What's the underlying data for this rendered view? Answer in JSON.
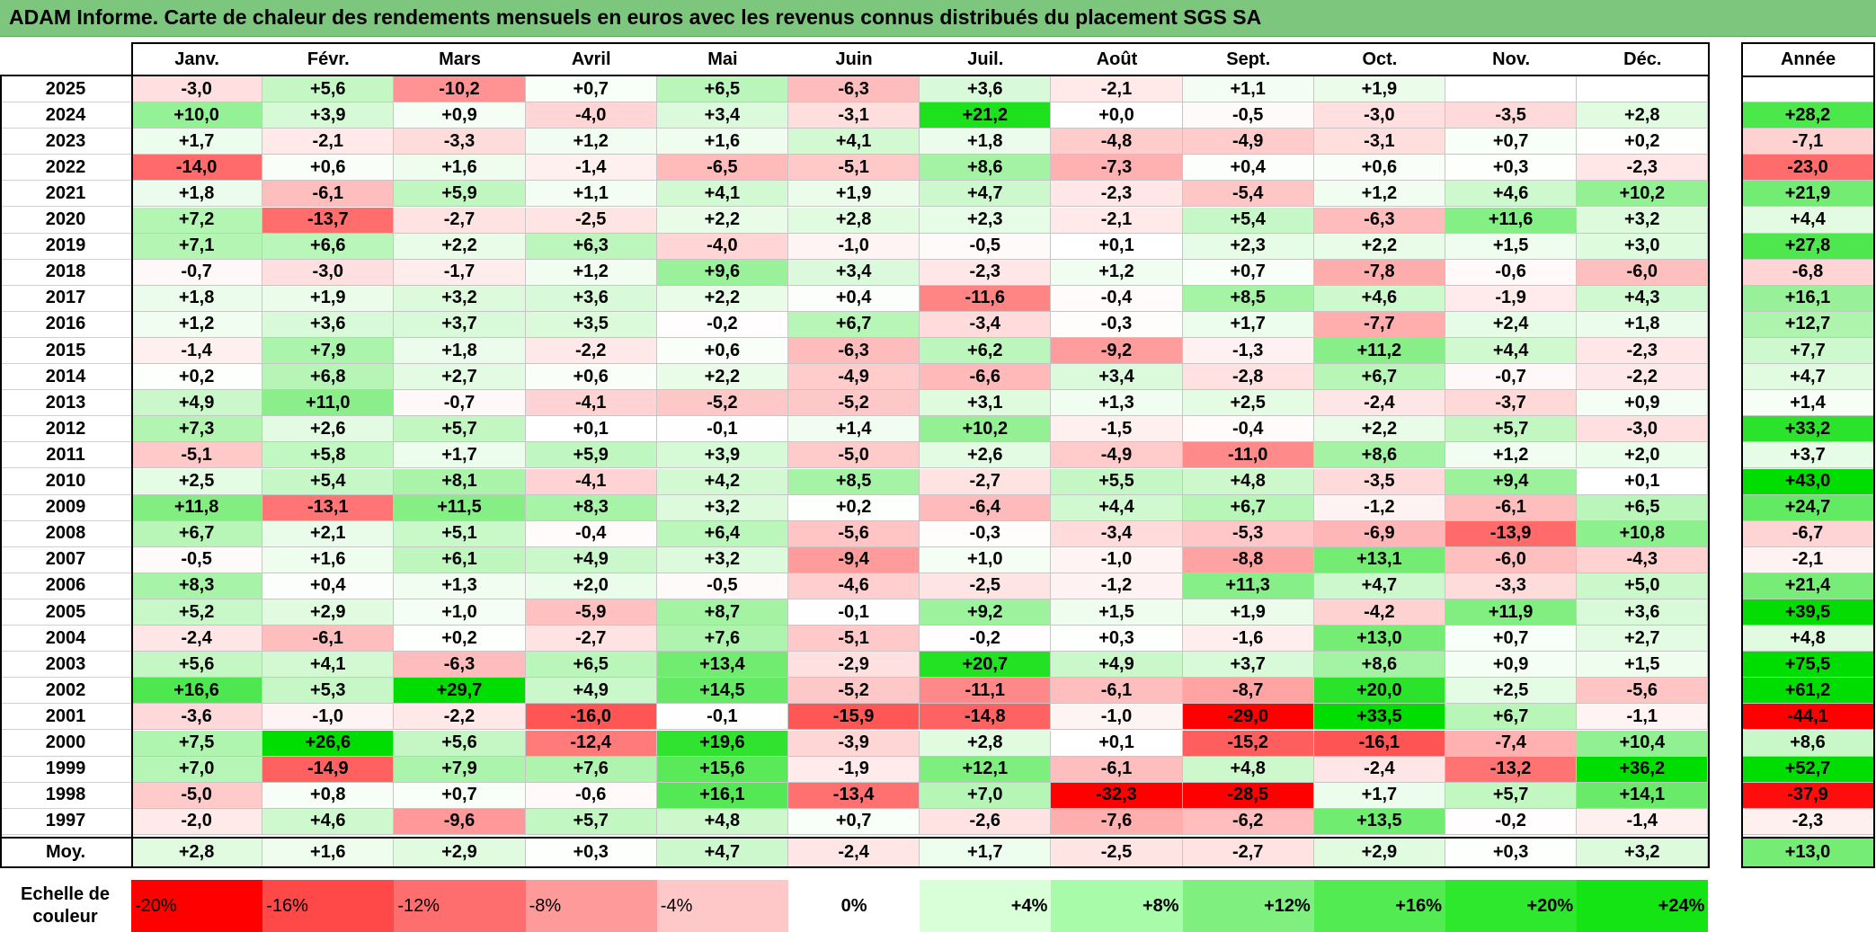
{
  "title": "ADAM Informe. Carte de chaleur des rendements mensuels en euros avec les revenus connus distribués du placement SGS SA",
  "chart_data": {
    "type": "heatmap",
    "columns": [
      "Janv.",
      "Févr.",
      "Mars",
      "Avril",
      "Mai",
      "Juin",
      "Juil.",
      "Août",
      "Sept.",
      "Oct.",
      "Nov.",
      "Déc."
    ],
    "year_header": "Année",
    "rows": [
      {
        "year": "2025",
        "values": [
          "-3,0",
          "+5,6",
          "-10,2",
          "+0,7",
          "+6,5",
          "-6,3",
          "+3,6",
          "-2,1",
          "+1,1",
          "+1,9",
          "",
          ""
        ],
        "annual": ""
      },
      {
        "year": "2024",
        "values": [
          "+10,0",
          "+3,9",
          "+0,9",
          "-4,0",
          "+3,4",
          "-3,1",
          "+21,2",
          "+0,0",
          "-0,5",
          "-3,0",
          "-3,5",
          "+2,8"
        ],
        "annual": "+28,2"
      },
      {
        "year": "2023",
        "values": [
          "+1,7",
          "-2,1",
          "-3,3",
          "+1,2",
          "+1,6",
          "+4,1",
          "+1,8",
          "-4,8",
          "-4,9",
          "-3,1",
          "+0,7",
          "+0,2"
        ],
        "annual": "-7,1"
      },
      {
        "year": "2022",
        "values": [
          "-14,0",
          "+0,6",
          "+1,6",
          "-1,4",
          "-6,5",
          "-5,1",
          "+8,6",
          "-7,3",
          "+0,4",
          "+0,6",
          "+0,3",
          "-2,3"
        ],
        "annual": "-23,0"
      },
      {
        "year": "2021",
        "values": [
          "+1,8",
          "-6,1",
          "+5,9",
          "+1,1",
          "+4,1",
          "+1,9",
          "+4,7",
          "-2,3",
          "-5,4",
          "+1,2",
          "+4,6",
          "+10,2"
        ],
        "annual": "+21,9"
      },
      {
        "year": "2020",
        "values": [
          "+7,2",
          "-13,7",
          "-2,7",
          "-2,5",
          "+2,2",
          "+2,8",
          "+2,3",
          "-2,1",
          "+5,4",
          "-6,3",
          "+11,6",
          "+3,2"
        ],
        "annual": "+4,4"
      },
      {
        "year": "2019",
        "values": [
          "+7,1",
          "+6,6",
          "+2,2",
          "+6,3",
          "-4,0",
          "-1,0",
          "-0,5",
          "+0,1",
          "+2,3",
          "+2,2",
          "+1,5",
          "+3,0"
        ],
        "annual": "+27,8"
      },
      {
        "year": "2018",
        "values": [
          "-0,7",
          "-3,0",
          "-1,7",
          "+1,2",
          "+9,6",
          "+3,4",
          "-2,3",
          "+1,2",
          "+0,7",
          "-7,8",
          "-0,6",
          "-6,0"
        ],
        "annual": "-6,8"
      },
      {
        "year": "2017",
        "values": [
          "+1,8",
          "+1,9",
          "+3,2",
          "+3,6",
          "+2,2",
          "+0,4",
          "-11,6",
          "-0,4",
          "+8,5",
          "+4,6",
          "-1,9",
          "+4,3"
        ],
        "annual": "+16,1"
      },
      {
        "year": "2016",
        "values": [
          "+1,2",
          "+3,6",
          "+3,7",
          "+3,5",
          "-0,2",
          "+6,7",
          "-3,4",
          "-0,3",
          "+1,7",
          "-7,7",
          "+2,4",
          "+1,8"
        ],
        "annual": "+12,7"
      },
      {
        "year": "2015",
        "values": [
          "-1,4",
          "+7,9",
          "+1,8",
          "-2,2",
          "+0,6",
          "-6,3",
          "+6,2",
          "-9,2",
          "-1,3",
          "+11,2",
          "+4,4",
          "-2,3"
        ],
        "annual": "+7,7"
      },
      {
        "year": "2014",
        "values": [
          "+0,2",
          "+6,8",
          "+2,7",
          "+0,6",
          "+2,2",
          "-4,9",
          "-6,6",
          "+3,4",
          "-2,8",
          "+6,7",
          "-0,7",
          "-2,2"
        ],
        "annual": "+4,7"
      },
      {
        "year": "2013",
        "values": [
          "+4,9",
          "+11,0",
          "-0,7",
          "-4,1",
          "-5,2",
          "-5,2",
          "+3,1",
          "+1,3",
          "+2,5",
          "-2,4",
          "-3,7",
          "+0,9"
        ],
        "annual": "+1,4"
      },
      {
        "year": "2012",
        "values": [
          "+7,3",
          "+2,6",
          "+5,7",
          "+0,1",
          "-0,1",
          "+1,4",
          "+10,2",
          "-1,5",
          "-0,4",
          "+2,2",
          "+5,7",
          "-3,0"
        ],
        "annual": "+33,2"
      },
      {
        "year": "2011",
        "values": [
          "-5,1",
          "+5,8",
          "+1,7",
          "+5,9",
          "+3,9",
          "-5,0",
          "+2,6",
          "-4,9",
          "-11,0",
          "+8,6",
          "+1,2",
          "+2,0"
        ],
        "annual": "+3,7"
      },
      {
        "year": "2010",
        "values": [
          "+2,5",
          "+5,4",
          "+8,1",
          "-4,1",
          "+4,2",
          "+8,5",
          "-2,7",
          "+5,5",
          "+4,8",
          "-3,5",
          "+9,4",
          "+0,1"
        ],
        "annual": "+43,0"
      },
      {
        "year": "2009",
        "values": [
          "+11,8",
          "-13,1",
          "+11,5",
          "+8,3",
          "+3,2",
          "+0,2",
          "-6,4",
          "+4,4",
          "+6,7",
          "-1,2",
          "-6,1",
          "+6,5"
        ],
        "annual": "+24,7"
      },
      {
        "year": "2008",
        "values": [
          "+6,7",
          "+2,1",
          "+5,1",
          "-0,4",
          "+6,4",
          "-5,6",
          "-0,3",
          "-3,4",
          "-5,3",
          "-6,9",
          "-13,9",
          "+10,8"
        ],
        "annual": "-6,7"
      },
      {
        "year": "2007",
        "values": [
          "-0,5",
          "+1,6",
          "+6,1",
          "+4,9",
          "+3,2",
          "-9,4",
          "+1,0",
          "-1,0",
          "-8,8",
          "+13,1",
          "-6,0",
          "-4,3"
        ],
        "annual": "-2,1"
      },
      {
        "year": "2006",
        "values": [
          "+8,3",
          "+0,4",
          "+1,3",
          "+2,0",
          "-0,5",
          "-4,6",
          "-2,5",
          "-1,2",
          "+11,3",
          "+4,7",
          "-3,3",
          "+5,0"
        ],
        "annual": "+21,4"
      },
      {
        "year": "2005",
        "values": [
          "+5,2",
          "+2,9",
          "+1,0",
          "-5,9",
          "+8,7",
          "-0,1",
          "+9,2",
          "+1,5",
          "+1,9",
          "-4,2",
          "+11,9",
          "+3,6"
        ],
        "annual": "+39,5"
      },
      {
        "year": "2004",
        "values": [
          "-2,4",
          "-6,1",
          "+0,2",
          "-2,7",
          "+7,6",
          "-5,1",
          "-0,2",
          "+0,3",
          "-1,6",
          "+13,0",
          "+0,7",
          "+2,7"
        ],
        "annual": "+4,8"
      },
      {
        "year": "2003",
        "values": [
          "+5,6",
          "+4,1",
          "-6,3",
          "+6,5",
          "+13,4",
          "-2,9",
          "+20,7",
          "+4,9",
          "+3,7",
          "+8,6",
          "+0,9",
          "+1,5"
        ],
        "annual": "+75,5"
      },
      {
        "year": "2002",
        "values": [
          "+16,6",
          "+5,3",
          "+29,7",
          "+4,9",
          "+14,5",
          "-5,2",
          "-11,1",
          "-6,1",
          "-8,7",
          "+20,0",
          "+2,5",
          "-5,6"
        ],
        "annual": "+61,2"
      },
      {
        "year": "2001",
        "values": [
          "-3,6",
          "-1,0",
          "-2,2",
          "-16,0",
          "-0,1",
          "-15,9",
          "-14,8",
          "-1,0",
          "-29,0",
          "+33,5",
          "+6,7",
          "-1,1"
        ],
        "annual": "-44,1"
      },
      {
        "year": "2000",
        "values": [
          "+7,5",
          "+26,6",
          "+5,6",
          "-12,4",
          "+19,6",
          "-3,9",
          "+2,8",
          "+0,1",
          "-15,2",
          "-16,1",
          "-7,4",
          "+10,4"
        ],
        "annual": "+8,6"
      },
      {
        "year": "1999",
        "values": [
          "+7,0",
          "-14,9",
          "+7,9",
          "+7,6",
          "+15,6",
          "-1,9",
          "+12,1",
          "-6,1",
          "+4,8",
          "-2,4",
          "-13,2",
          "+36,2"
        ],
        "annual": "+52,7"
      },
      {
        "year": "1998",
        "values": [
          "-5,0",
          "+0,8",
          "+0,7",
          "-0,6",
          "+16,1",
          "-13,4",
          "+7,0",
          "-32,3",
          "-28,5",
          "+1,7",
          "+5,7",
          "+14,1"
        ],
        "annual": "-37,9"
      },
      {
        "year": "1997",
        "values": [
          "-2,0",
          "+4,6",
          "-9,6",
          "+5,7",
          "+4,8",
          "+0,7",
          "-2,6",
          "-7,6",
          "-6,2",
          "+13,5",
          "-0,2",
          "-1,4"
        ],
        "annual": "-2,3"
      }
    ],
    "average": {
      "label": "Moy.",
      "values": [
        "+2,8",
        "+1,6",
        "+2,9",
        "+0,3",
        "+4,7",
        "-2,4",
        "+1,7",
        "-2,5",
        "-2,7",
        "+2,9",
        "+0,3",
        "+3,2"
      ],
      "annual": "+13,0"
    },
    "scale": {
      "label": "Echelle de couleur",
      "steps": [
        "-20%",
        "-16%",
        "-12%",
        "-8%",
        "-4%",
        "0%",
        "+4%",
        "+8%",
        "+12%",
        "+16%",
        "+20%",
        "+24%"
      ],
      "colors": [
        "#ff0000",
        "#ff4848",
        "#ff6e6e",
        "#ff9a9a",
        "#ffc8c8",
        "#ffffff",
        "#d8ffd8",
        "#a8fba8",
        "#7ff07f",
        "#52ec52",
        "#2ee82e",
        "#14e414"
      ]
    },
    "colors": {
      "negative_max": "#ff0000",
      "neutral": "#ffffff",
      "positive_max": "#00dd00",
      "title_bg": "#7dc67d"
    }
  }
}
